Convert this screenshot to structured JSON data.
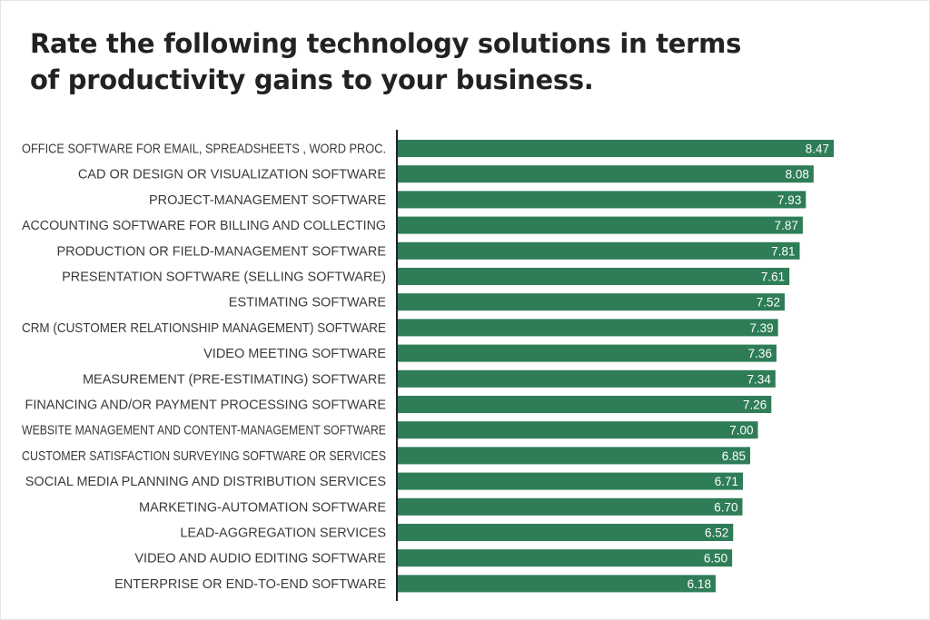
{
  "title_lines": [
    "Rate the following technology solutions in terms",
    "of productivity gains to your business."
  ],
  "colors": {
    "bar": "#2e7d57",
    "axis": "#222222",
    "label": "#3a3a3a",
    "value_label": "#ffffff",
    "title": "#222222"
  },
  "chart_data": {
    "type": "bar",
    "orientation": "horizontal",
    "title": "Rate the following technology solutions in terms of productivity gains to your business.",
    "xlabel": "",
    "ylabel": "",
    "xlim": [
      0,
      8.6
    ],
    "grid": false,
    "legend": "none",
    "categories": [
      "OFFICE SOFTWARE FOR EMAIL, SPREADSHEETS , WORD PROC.",
      "CAD OR DESIGN OR VISUALIZATION SOFTWARE",
      "PROJECT-MANAGEMENT SOFTWARE",
      "ACCOUNTING SOFTWARE FOR BILLING AND COLLECTING",
      "PRODUCTION OR FIELD-MANAGEMENT SOFTWARE",
      "PRESENTATION SOFTWARE (SELLING SOFTWARE)",
      "ESTIMATING SOFTWARE",
      "CRM (CUSTOMER RELATIONSHIP MANAGEMENT) SOFTWARE",
      "VIDEO MEETING SOFTWARE",
      "MEASUREMENT (PRE-ESTIMATING) SOFTWARE",
      "FINANCING AND/OR PAYMENT PROCESSING SOFTWARE",
      "WEBSITE MANAGEMENT AND CONTENT-MANAGEMENT SOFTWARE",
      "CUSTOMER SATISFACTION SURVEYING SOFTWARE OR SERVICES",
      "SOCIAL MEDIA PLANNING AND DISTRIBUTION SERVICES",
      "MARKETING-AUTOMATION SOFTWARE",
      "LEAD-AGGREGATION SERVICES",
      "VIDEO AND AUDIO EDITING SOFTWARE",
      "ENTERPRISE OR END-TO-END SOFTWARE"
    ],
    "values": [
      8.47,
      8.08,
      7.93,
      7.87,
      7.81,
      7.61,
      7.52,
      7.39,
      7.36,
      7.34,
      7.26,
      7.0,
      6.85,
      6.71,
      6.7,
      6.52,
      6.5,
      6.18
    ],
    "value_labels": [
      "8.47",
      "8.08",
      "7.93",
      "7.87",
      "7.81",
      "7.61",
      "7.52",
      "7.39",
      "7.36",
      "7.34",
      "7.26",
      "7.00",
      "6.85",
      "6.71",
      "6.70",
      "6.52",
      "6.50",
      "6.18"
    ]
  }
}
